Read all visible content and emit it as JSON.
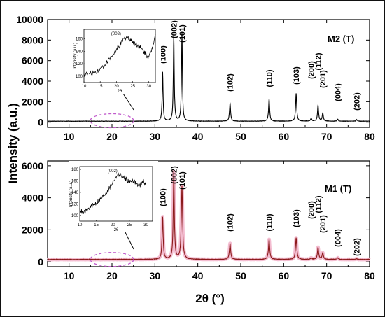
{
  "figure": {
    "ylabel": "Intensity (a.u.)",
    "xlabel": "2θ (°)",
    "colors": {
      "top_trace": "#000000",
      "bottom_trace": "#8b1a1a",
      "bottom_glow": "#f3bcd0",
      "ellipse": "#c15ccc",
      "inset_trace": "#000000"
    }
  },
  "chart_data": [
    {
      "type": "line",
      "title": "M2 (T)",
      "x_range": [
        5,
        80
      ],
      "y_range": [
        -500,
        10000
      ],
      "x_ticks": [
        10,
        20,
        30,
        40,
        50,
        60,
        70,
        80
      ],
      "y_ticks": [
        0,
        2000,
        4000,
        6000,
        8000,
        10000
      ],
      "baseline": 100,
      "peaks": [
        {
          "label": "(100)",
          "x": 31.8,
          "y": 4900,
          "width": 0.25
        },
        {
          "label": "(002)",
          "x": 34.4,
          "y": 8600,
          "width": 0.25
        },
        {
          "label": "(101)",
          "x": 36.3,
          "y": 8700,
          "width": 0.25
        },
        {
          "label": "(102)",
          "x": 47.5,
          "y": 1900,
          "width": 0.3
        },
        {
          "label": "(110)",
          "x": 56.6,
          "y": 2300,
          "width": 0.3
        },
        {
          "label": "(103)",
          "x": 62.9,
          "y": 2800,
          "width": 0.3
        },
        {
          "label": "(200)",
          "x": 66.4,
          "y": 400,
          "width": 0.3
        },
        {
          "label": "(112)",
          "x": 68.0,
          "y": 1700,
          "width": 0.3
        },
        {
          "label": "(201)",
          "x": 69.1,
          "y": 900,
          "width": 0.3
        },
        {
          "label": "(004)",
          "x": 72.6,
          "y": 300,
          "width": 0.3
        },
        {
          "label": "(202)",
          "x": 77.0,
          "y": 250,
          "width": 0.3
        }
      ],
      "inset": {
        "title": "(002)",
        "xlabel": "2θ",
        "ylabel": "Intensity (a.u.)",
        "x_range": [
          10,
          32
        ],
        "y_range": [
          90,
          175
        ],
        "x_ticks": [
          10,
          15,
          20,
          25,
          30
        ],
        "y_ticks": [
          100,
          120,
          140,
          160
        ],
        "x": [
          10,
          12,
          14,
          16,
          18,
          20,
          21,
          22,
          23,
          24,
          25,
          26,
          27,
          28,
          29,
          30,
          31,
          32
        ],
        "y": [
          103,
          104,
          108,
          116,
          128,
          142,
          148,
          158,
          163,
          160,
          156,
          152,
          148,
          142,
          136,
          130,
          145,
          168
        ]
      }
    },
    {
      "type": "line",
      "title": "M1 (T)",
      "x_range": [
        5,
        80
      ],
      "y_range": [
        -300,
        6300
      ],
      "x_ticks": [
        10,
        20,
        30,
        40,
        50,
        60,
        70,
        80
      ],
      "y_ticks": [
        0,
        2000,
        4000,
        6000
      ],
      "baseline": 150,
      "peaks": [
        {
          "label": "(100)",
          "x": 31.8,
          "y": 2800,
          "width": 0.3
        },
        {
          "label": "(002)",
          "x": 34.4,
          "y": 5600,
          "width": 0.3
        },
        {
          "label": "(101)",
          "x": 36.3,
          "y": 4700,
          "width": 0.35
        },
        {
          "label": "(102)",
          "x": 47.5,
          "y": 1150,
          "width": 0.35
        },
        {
          "label": "(110)",
          "x": 56.6,
          "y": 1400,
          "width": 0.35
        },
        {
          "label": "(103)",
          "x": 62.9,
          "y": 1500,
          "width": 0.35
        },
        {
          "label": "(200)",
          "x": 66.4,
          "y": 250,
          "width": 0.35
        },
        {
          "label": "(112)",
          "x": 68.0,
          "y": 900,
          "width": 0.35
        },
        {
          "label": "(201)",
          "x": 69.1,
          "y": 550,
          "width": 0.35
        },
        {
          "label": "(004)",
          "x": 72.6,
          "y": 250,
          "width": 0.35
        },
        {
          "label": "(202)",
          "x": 77.0,
          "y": 200,
          "width": 0.35
        }
      ],
      "inset": {
        "title": "(002)",
        "xlabel": "2θ",
        "ylabel": "Intensity (a.u.)",
        "x_range": [
          10,
          32
        ],
        "y_range": [
          90,
          185
        ],
        "x_ticks": [
          10,
          15,
          20,
          25,
          30
        ],
        "y_ticks": [
          100,
          120,
          140,
          160,
          180
        ],
        "x": [
          10,
          11,
          12,
          13,
          14,
          15,
          16,
          17,
          18,
          19,
          20,
          21,
          22,
          23,
          24,
          25,
          26,
          27,
          28,
          29,
          30
        ],
        "y": [
          110,
          104,
          108,
          113,
          118,
          122,
          127,
          133,
          140,
          148,
          158,
          168,
          172,
          166,
          163,
          158,
          162,
          156,
          150,
          160,
          155
        ]
      }
    }
  ]
}
